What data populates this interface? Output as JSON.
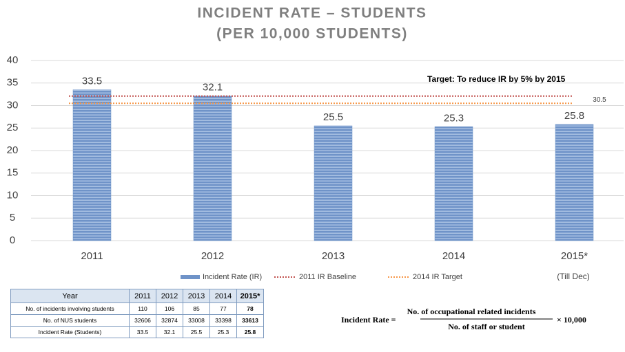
{
  "chart_data": {
    "type": "bar",
    "title": "INCIDENT RATE – STUDENTS",
    "subtitle": "(PER 10,000 STUDENTS)",
    "annotations": [
      "Target: To reduce IR by 5% by 2015",
      "(Till Dec)"
    ],
    "categories": [
      "2011",
      "2012",
      "2013",
      "2014",
      "2015*"
    ],
    "series": [
      {
        "name": "Incident Rate (IR)",
        "color": "#6f93c8",
        "values": [
          33.5,
          32.1,
          25.5,
          25.3,
          25.8
        ]
      }
    ],
    "reference_lines": [
      {
        "name": "2011 IR Baseline",
        "color": "#c0504d",
        "value": 32.1
      },
      {
        "name": "2014 IR Target",
        "color": "#f79646",
        "value": 30.5
      }
    ],
    "ylim": [
      0,
      40
    ],
    "yticks": [
      0,
      5,
      10,
      15,
      20,
      25,
      30,
      35,
      40
    ],
    "grid": true,
    "legend": "bottom"
  },
  "table": {
    "header": [
      "Year",
      "2011",
      "2012",
      "2013",
      "2014",
      "2015*"
    ],
    "rows": [
      [
        "No. of incidents involving students",
        110,
        106,
        85,
        77,
        78
      ],
      [
        "No. of NUS students",
        32606,
        32874,
        33008,
        33398,
        33613
      ],
      [
        "Incident Rate (Students)",
        33.5,
        32.1,
        25.5,
        25.3,
        25.8
      ]
    ]
  },
  "formula": {
    "label": "Incident Rate =",
    "numerator": "No. of occupational related incidents",
    "denominator": "No. of staff or student",
    "multiplier": "× 10,000"
  }
}
